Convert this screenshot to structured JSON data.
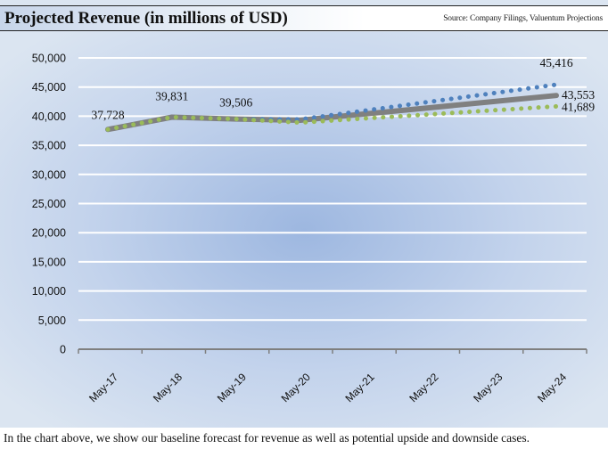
{
  "header": {
    "title": "Projected Revenue (in millions of USD)",
    "source": "Source: Company Filings, Valuentum Projections"
  },
  "caption": "In the chart above, we show our baseline forecast for revenue as well as potential upside and downside cases.",
  "colors": {
    "base": "#808080",
    "upside": "#4f81bd",
    "downside": "#9bbb59",
    "grid": "#ffffff",
    "axis": "#7f7f7f"
  },
  "chart_data": {
    "type": "line",
    "title": "Projected Revenue (in millions of USD)",
    "xlabel": "",
    "ylabel": "",
    "categories": [
      "May-17",
      "May-18",
      "May-19",
      "May-20",
      "May-21",
      "May-22",
      "May-23",
      "May-24"
    ],
    "ylim": [
      0,
      50000
    ],
    "yticks": [
      0,
      5000,
      10000,
      15000,
      20000,
      25000,
      30000,
      35000,
      40000,
      45000,
      50000
    ],
    "ytick_labels": [
      "0",
      "5,000",
      "10,000",
      "15,000",
      "20,000",
      "25,000",
      "30,000",
      "35,000",
      "40,000",
      "45,000",
      "50,000"
    ],
    "grid": true,
    "legend": "none",
    "series": [
      {
        "name": "Base",
        "style": "solid",
        "values": [
          37728,
          39831,
          39506,
          39300,
          40360,
          41420,
          42490,
          43553
        ]
      },
      {
        "name": "Upside",
        "style": "dotted",
        "values": [
          37728,
          39831,
          39506,
          39450,
          40940,
          42430,
          43920,
          45416
        ]
      },
      {
        "name": "Downside",
        "style": "dotted",
        "values": [
          37728,
          39831,
          39506,
          38900,
          39600,
          40290,
          40990,
          41689
        ]
      }
    ],
    "data_labels": [
      {
        "category": "May-17",
        "text": "37,728",
        "series": "Base"
      },
      {
        "category": "May-18",
        "text": "39,831",
        "series": "Base"
      },
      {
        "category": "May-19",
        "text": "39,506",
        "series": "Base"
      },
      {
        "category": "May-24",
        "text": "45,416",
        "series": "Upside"
      },
      {
        "category": "May-24",
        "text": "43,553",
        "series": "Base"
      },
      {
        "category": "May-24",
        "text": "41,689",
        "series": "Downside"
      }
    ]
  }
}
